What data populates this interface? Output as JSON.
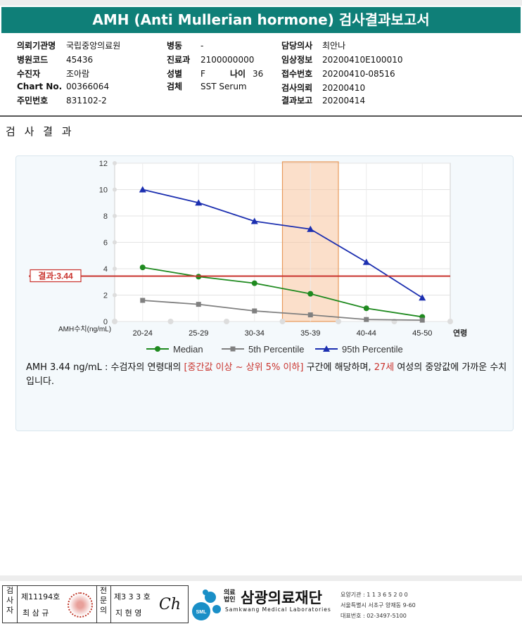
{
  "title": "AMH (Anti Mullerian hormone) 검사결과보고서",
  "info": {
    "col1": [
      {
        "label": "의뢰기관명",
        "value": "국립중앙의료원"
      },
      {
        "label": "병원코드",
        "value": "45436"
      },
      {
        "label": "수진자",
        "value": "조아람"
      },
      {
        "label": "Chart No.",
        "value": "00366064"
      },
      {
        "label": "주민번호",
        "value": "831102-2"
      }
    ],
    "col2": [
      {
        "label": "병동",
        "value": "-"
      },
      {
        "label": "진료과",
        "value": "2100000000"
      },
      {
        "label": "성별",
        "value": "F"
      },
      {
        "label": "검체",
        "value": "SST Serum"
      }
    ],
    "age_label": "나이",
    "age_value": "36",
    "col3": [
      {
        "label": "담당의사",
        "value": "최안나"
      },
      {
        "label": "임상정보",
        "value": "20200410E100010"
      },
      {
        "label": "접수번호",
        "value": "20200410-08516"
      },
      {
        "label": "검사의뢰",
        "value": "20200410"
      },
      {
        "label": "결과보고",
        "value": "20200414"
      }
    ]
  },
  "section_title": "검 사 결 과",
  "chart_data": {
    "type": "line",
    "categories": [
      "20-24",
      "25-29",
      "30-34",
      "35-39",
      "40-44",
      "45-50"
    ],
    "x_axis_unit": "연령",
    "y_axis_label": "AMH수치(ng/mL)",
    "ylim": [
      0,
      12
    ],
    "y_ticks": [
      "0",
      "2",
      "4",
      "6",
      "8",
      "10",
      "12"
    ],
    "grid": true,
    "legend_position": "bottom",
    "series": [
      {
        "name": "Median",
        "values": [
          4.1,
          3.4,
          2.9,
          2.1,
          1.0,
          0.35
        ],
        "color": "#1f8a1f",
        "marker": "circle"
      },
      {
        "name": "5th Percentile",
        "values": [
          1.6,
          1.3,
          0.8,
          0.5,
          0.15,
          0.1
        ],
        "color": "#808080",
        "marker": "square"
      },
      {
        "name": "95th Percentile",
        "values": [
          10.0,
          9.0,
          7.6,
          7.0,
          4.5,
          1.8
        ],
        "color": "#1c2fb0",
        "marker": "triangle"
      }
    ],
    "reference_line": {
      "label": "결과:3.44",
      "value": 3.44,
      "color": "#c9322c"
    },
    "highlight_category": "35-39",
    "highlight_color": "#f7c59f"
  },
  "comment": {
    "part1": "AMH  3.44 ng/mL : 수검자의 연령대의 ",
    "range": "[중간값 이상 ~ 상위 5% 이하]",
    "part2": "  구간에 해당하며, ",
    "age": "27세",
    "part3": " 여성의 중앙값에 가까운 수치입니다."
  },
  "signature": {
    "label1": "검사자",
    "num1": "제11194호",
    "name1": "최 삼 규",
    "label2": "전문의",
    "num2": "제3 3 3 호",
    "name2": "지 현 영",
    "sign_text": "Ch"
  },
  "org": {
    "small1": "의료",
    "small2": "법인",
    "name": "삼광의료재단",
    "eng": "Samkwang Medical Laboratories",
    "logo_text": "SML",
    "contact": [
      "요양기관 : 1 1 3 6 5 2 0 0",
      "서울특별시 서초구 양재동 9-60",
      "대표번호 : 02-3497-5100"
    ]
  }
}
